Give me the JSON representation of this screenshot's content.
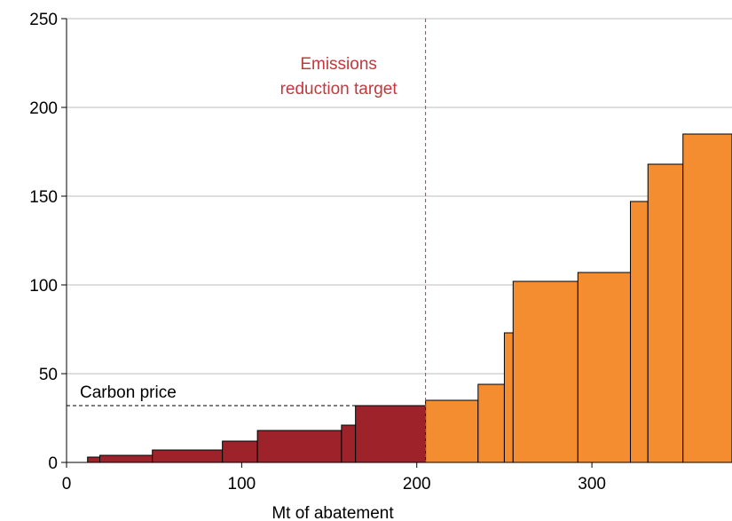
{
  "chart_data": {
    "type": "bar",
    "xlabel": "Mt of abatement",
    "ylabel": "",
    "xlim": [
      0,
      380
    ],
    "ylim": [
      0,
      250
    ],
    "x_ticks": [
      0,
      100,
      200,
      300
    ],
    "y_ticks": [
      0,
      50,
      100,
      150,
      200,
      250
    ],
    "grid": true,
    "bars": [
      {
        "x0": 12,
        "x1": 19,
        "value": 3,
        "group": "below_price"
      },
      {
        "x0": 19,
        "x1": 49,
        "value": 4,
        "group": "below_price"
      },
      {
        "x0": 49,
        "x1": 89,
        "value": 7,
        "group": "below_price"
      },
      {
        "x0": 89,
        "x1": 109,
        "value": 12,
        "group": "below_price"
      },
      {
        "x0": 109,
        "x1": 157,
        "value": 18,
        "group": "below_price"
      },
      {
        "x0": 157,
        "x1": 165,
        "value": 21,
        "group": "below_price"
      },
      {
        "x0": 165,
        "x1": 205,
        "value": 32,
        "group": "below_price"
      },
      {
        "x0": 205,
        "x1": 235,
        "value": 35,
        "group": "above_price"
      },
      {
        "x0": 235,
        "x1": 250,
        "value": 44,
        "group": "above_price"
      },
      {
        "x0": 250,
        "x1": 255,
        "value": 73,
        "group": "above_price"
      },
      {
        "x0": 255,
        "x1": 292,
        "value": 102,
        "group": "above_price"
      },
      {
        "x0": 292,
        "x1": 322,
        "value": 107,
        "group": "above_price"
      },
      {
        "x0": 322,
        "x1": 332,
        "value": 147,
        "group": "above_price"
      },
      {
        "x0": 332,
        "x1": 352,
        "value": 168,
        "group": "above_price"
      },
      {
        "x0": 352,
        "x1": 380,
        "value": 185,
        "group": "above_price"
      }
    ],
    "colors": {
      "below_price": "#9e2229",
      "above_price": "#f48c30",
      "target_line": "#c0393f",
      "price_line": "#000000",
      "grid": "#bdbdbd"
    },
    "annotations": {
      "target": {
        "x": 205,
        "line1": "Emissions",
        "line2": "reduction target"
      },
      "price": {
        "y": 32,
        "label": "Carbon price"
      }
    }
  }
}
